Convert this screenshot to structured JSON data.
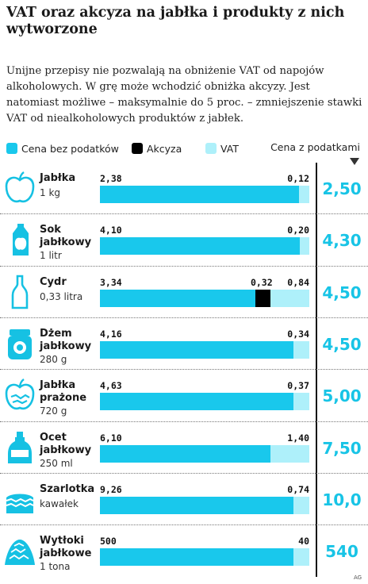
{
  "title": "VAT oraz akcyza na jabłka i produkty z nich wytworzone",
  "intro": "Unijne przepisy nie pozwalają na obniżenie VAT od napojów alkoholowych. W grę może wchodzić obniżka akcyzy. Jest natomiast możliwe – maksymalnie do 5 proc. – zmniejszenie stawki VAT od niealkoholowych produktów z jabłek.",
  "legend": {
    "net_label": "Cena bez podatków",
    "excise_label": "Akcyza",
    "vat_label": "VAT",
    "total_label": "Cena z podatkami"
  },
  "colors": {
    "net": "#19c8ec",
    "excise": "#000000",
    "vat": "#aef0fa",
    "total": "#18c4e6"
  },
  "credit": "AG",
  "chart_data": {
    "type": "bar",
    "stacked": true,
    "orientation": "horizontal",
    "normalized_per_row": true,
    "series_names": [
      "Cena bez podatków",
      "Akcyza",
      "VAT"
    ],
    "items": [
      {
        "name": "Jabłka",
        "qty": "1 kg",
        "icon": "apple-icon",
        "net": 2.38,
        "excise": null,
        "vat": 0.12,
        "net_label": "2,38",
        "excise_label": "",
        "vat_label": "0,12",
        "total": 2.5,
        "total_label": "2,50"
      },
      {
        "name": "Sok jabłkowy",
        "qty": "1 litr",
        "icon": "juice-carton-icon",
        "net": 4.1,
        "excise": null,
        "vat": 0.2,
        "net_label": "4,10",
        "excise_label": "",
        "vat_label": "0,20",
        "total": 4.3,
        "total_label": "4,30"
      },
      {
        "name": "Cydr",
        "qty": "0,33 litra",
        "icon": "bottle-icon",
        "net": 3.34,
        "excise": 0.32,
        "vat": 0.84,
        "net_label": "3,34",
        "excise_label": "0,32",
        "vat_label": "0,84",
        "total": 4.5,
        "total_label": "4,50"
      },
      {
        "name": "Dżem jabłkowy",
        "qty": "280 g",
        "icon": "jam-jar-icon",
        "net": 4.16,
        "excise": null,
        "vat": 0.34,
        "net_label": "4,16",
        "excise_label": "",
        "vat_label": "0,34",
        "total": 4.5,
        "total_label": "4,50"
      },
      {
        "name": "Jabłka prażone",
        "qty": "720 g",
        "icon": "baked-apple-icon",
        "net": 4.63,
        "excise": null,
        "vat": 0.37,
        "net_label": "4,63",
        "excise_label": "",
        "vat_label": "0,37",
        "total": 5.0,
        "total_label": "5,00"
      },
      {
        "name": "Ocet jabłkowy",
        "qty": "250 ml",
        "icon": "vinegar-bottle-icon",
        "net": 6.1,
        "excise": null,
        "vat": 1.4,
        "net_label": "6,10",
        "excise_label": "",
        "vat_label": "1,40",
        "total": 7.5,
        "total_label": "7,50"
      },
      {
        "name": "Szarlotka",
        "qty": "kawałek",
        "icon": "cake-slice-icon",
        "net": 9.26,
        "excise": null,
        "vat": 0.74,
        "net_label": "9,26",
        "excise_label": "",
        "vat_label": "0,74",
        "total": 10.0,
        "total_label": "10,0"
      },
      {
        "name": "Wytłoki jabłkowe",
        "qty": "1 tona",
        "icon": "pomace-pile-icon",
        "net": 500,
        "excise": null,
        "vat": 40,
        "net_label": "500",
        "excise_label": "",
        "vat_label": "40",
        "total": 540,
        "total_label": "540"
      }
    ]
  }
}
